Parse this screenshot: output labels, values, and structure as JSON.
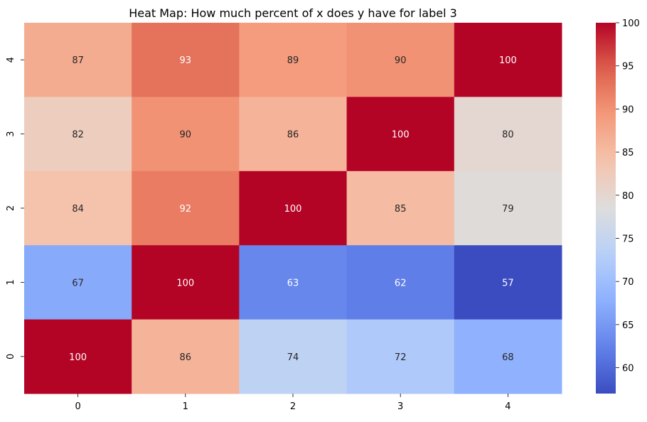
{
  "chart_data": {
    "type": "heatmap",
    "title": "Heat Map: How much percent of x does y have for label 3",
    "xlabel": "",
    "ylabel": "",
    "x_categories": [
      "0",
      "1",
      "2",
      "3",
      "4"
    ],
    "y_categories": [
      "4",
      "3",
      "2",
      "1",
      "0"
    ],
    "values": [
      [
        87,
        93,
        89,
        90,
        100
      ],
      [
        82,
        90,
        86,
        100,
        80
      ],
      [
        84,
        92,
        100,
        85,
        79
      ],
      [
        67,
        100,
        63,
        62,
        57
      ],
      [
        100,
        86,
        74,
        72,
        68
      ]
    ],
    "colormap": "coolwarm",
    "vmin": 57,
    "vmax": 100,
    "colorbar": {
      "ticks": [
        60,
        65,
        70,
        75,
        80,
        85,
        90,
        95,
        100
      ]
    },
    "annotations": true
  }
}
